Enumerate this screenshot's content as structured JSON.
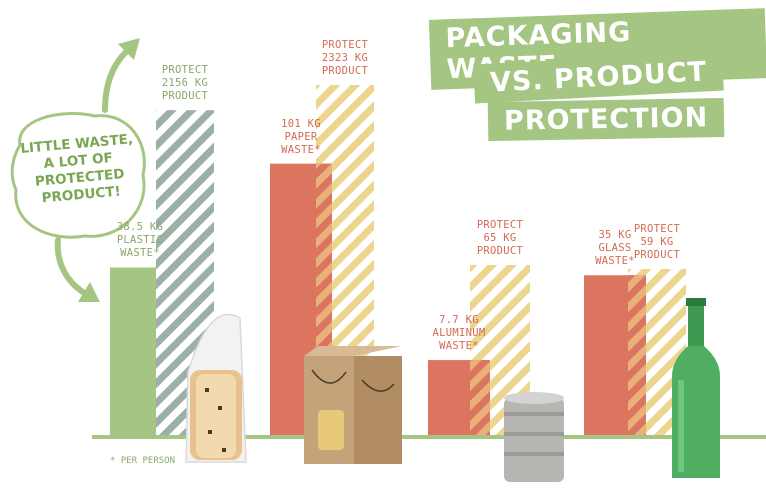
{
  "title_line1": "PACKAGING WASTE",
  "title_line2": "VS. PRODUCT",
  "title_line3": "PROTECTION",
  "callout": "LITTLE WASTE,\nA LOT OF\nPROTECTED\nPRODUCT!",
  "footnote": "* PER PERSON",
  "colors": {
    "plastic": "#a5c682",
    "plastic_stripe": "#9bb0a6",
    "orange": "#dc7560",
    "yellow_stripe": "#ecd58c",
    "baseline": "#a5c682",
    "label_green": "#8aa86a",
    "label_orange": "#d46a55"
  },
  "chart_data": {
    "type": "bar",
    "units": "kg",
    "categories": [
      "Plastic",
      "Paper",
      "Aluminum",
      "Glass"
    ],
    "series": [
      {
        "kind": "waste",
        "values": [
          38.5,
          101,
          7.7,
          35
        ]
      },
      {
        "kind": "protect",
        "values": [
          2156,
          2323,
          65,
          59
        ]
      }
    ],
    "labels": {
      "waste": [
        "38.5 KG\nPLASTIC\nWASTE*",
        "101 KG\nPAPER\nWASTE*",
        "7.7 KG\nALUMINUM\nWASTE*",
        "35 KG\nGLASS\nWASTE*"
      ],
      "protect": [
        "PROTECT\n2156 KG\nPRODUCT",
        "PROTECT\n2323 KG\nPRODUCT",
        "PROTECT\n65 KG\nPRODUCT",
        "PROTECT\n59 KG\nPRODUCT"
      ]
    },
    "products": [
      "sliced bread",
      "pasta box",
      "tin can",
      "glass bottle"
    ]
  }
}
